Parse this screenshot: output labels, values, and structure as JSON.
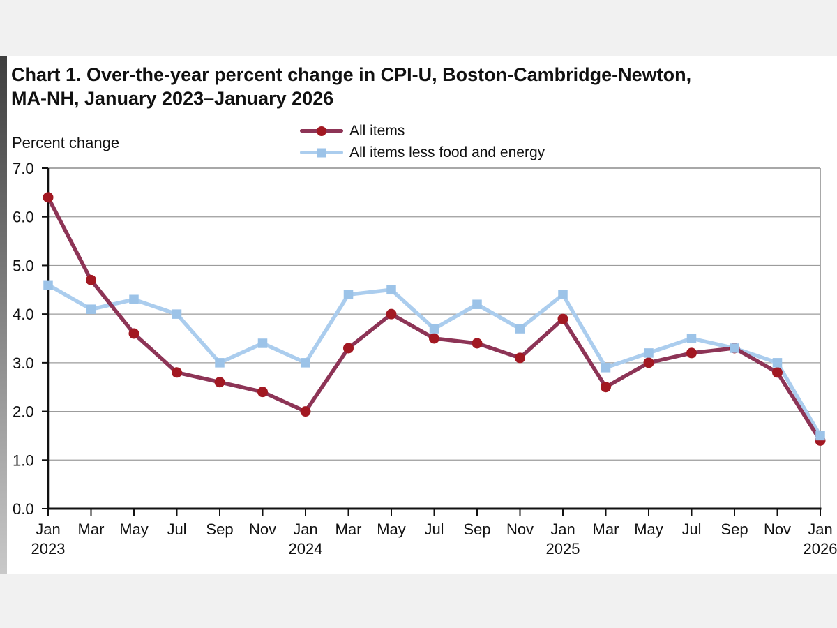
{
  "title": {
    "line1": "Chart 1. Over-the-year percent change in CPI-U, Boston-Cambridge-Newton,",
    "line2": "MA-NH, January 2023–January 2026"
  },
  "y_axis_title": "Percent change",
  "legend": [
    {
      "label": "All items"
    },
    {
      "label": "All items less food and energy"
    }
  ],
  "colors": {
    "all_items_line": "#8d3456",
    "all_items_marker": "#a21822",
    "core_line": "#abcdee",
    "core_marker": "#9cc3e8",
    "gridline": "#9c9c9c",
    "axis": "#111111",
    "border": "#8c8c8c",
    "text": "#111111"
  },
  "chart_data": {
    "type": "line",
    "title": "Chart 1. Over-the-year percent change in CPI-U, Boston-Cambridge-Newton, MA-NH, January 2023–January 2026",
    "ylabel": "Percent change",
    "ylim": [
      0,
      7
    ],
    "ytick_step": 1,
    "grid": true,
    "legend_position": "top-center",
    "x": [
      "Jan 2023",
      "Mar 2023",
      "May 2023",
      "Jul 2023",
      "Sep 2023",
      "Nov 2023",
      "Jan 2024",
      "Mar 2024",
      "May 2024",
      "Jul 2024",
      "Sep 2024",
      "Nov 2024",
      "Jan 2025",
      "Mar 2025",
      "May 2025",
      "Jul 2025",
      "Sep 2025",
      "Nov 2025",
      "Jan 2026"
    ],
    "x_tick_labels": [
      "Jan",
      "Mar",
      "May",
      "Jul",
      "Sep",
      "Nov",
      "Jan",
      "Mar",
      "May",
      "Jul",
      "Sep",
      "Nov",
      "Jan",
      "Mar",
      "May",
      "Jul",
      "Sep",
      "Nov",
      "Jan"
    ],
    "x_year_labels": [
      {
        "index": 0,
        "label": "2023"
      },
      {
        "index": 6,
        "label": "2024"
      },
      {
        "index": 12,
        "label": "2025"
      },
      {
        "index": 18,
        "label": "2026"
      }
    ],
    "series": [
      {
        "name": "All items",
        "marker": "circle",
        "line_color": "#8d3456",
        "marker_color": "#a21822",
        "values": [
          6.4,
          4.7,
          3.6,
          2.8,
          2.6,
          2.4,
          2.0,
          3.3,
          4.0,
          3.5,
          3.4,
          3.1,
          3.9,
          2.5,
          3.0,
          3.2,
          3.3,
          2.8,
          1.4
        ]
      },
      {
        "name": "All items less food and energy",
        "marker": "square",
        "line_color": "#abcdee",
        "marker_color": "#9cc3e8",
        "values": [
          4.6,
          4.1,
          4.3,
          4.0,
          3.0,
          3.4,
          3.0,
          4.4,
          4.5,
          3.7,
          4.2,
          3.7,
          4.4,
          2.9,
          3.2,
          3.5,
          3.3,
          3.0,
          1.5
        ]
      }
    ]
  }
}
